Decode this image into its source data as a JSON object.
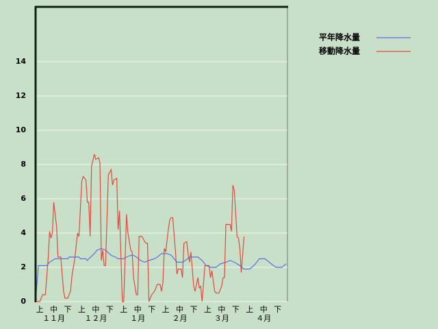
{
  "chart_data": {
    "type": "line",
    "xlim": [
      0,
      180
    ],
    "ylim": [
      0,
      17.2
    ],
    "yticks": [
      0,
      2,
      4,
      6,
      8,
      10,
      12,
      14
    ],
    "xticks": [
      {
        "value": 3,
        "label": "上"
      },
      {
        "value": 13,
        "label": "中"
      },
      {
        "value": 23,
        "label": "下"
      },
      {
        "value": 33,
        "label": "上"
      },
      {
        "value": 43,
        "label": "中"
      },
      {
        "value": 53,
        "label": "下"
      },
      {
        "value": 63,
        "label": "上"
      },
      {
        "value": 73,
        "label": "中"
      },
      {
        "value": 83,
        "label": "下"
      },
      {
        "value": 93,
        "label": "上"
      },
      {
        "value": 103,
        "label": "中"
      },
      {
        "value": 113,
        "label": "下"
      },
      {
        "value": 123,
        "label": "上"
      },
      {
        "value": 133,
        "label": "中"
      },
      {
        "value": 143,
        "label": "下"
      },
      {
        "value": 153,
        "label": "上"
      },
      {
        "value": 163,
        "label": "中"
      },
      {
        "value": 173,
        "label": "下"
      }
    ],
    "month_ticks": [
      {
        "value": 13,
        "label": "１１月"
      },
      {
        "value": 43,
        "label": "１２月"
      },
      {
        "value": 73,
        "label": "１月"
      },
      {
        "value": 103,
        "label": "２月"
      },
      {
        "value": 133,
        "label": "３月"
      },
      {
        "value": 163,
        "label": "４月"
      }
    ],
    "grid": true,
    "series": [
      {
        "name": "平年降水量",
        "color": "#5a6ee6",
        "x": [
          0,
          2,
          8,
          10,
          14,
          23,
          24,
          31,
          32,
          36,
          37,
          38,
          42,
          44,
          47,
          50,
          54,
          57,
          59,
          63,
          65,
          68,
          70,
          72,
          75,
          78,
          81,
          85,
          87,
          90,
          94,
          97,
          99,
          101,
          105,
          107,
          110,
          116,
          119,
          122,
          125,
          129,
          132,
          136,
          139,
          142,
          146,
          149,
          153,
          156,
          158,
          160,
          164,
          167,
          170,
          172,
          176,
          179
        ],
        "values": [
          0,
          2.1,
          2.1,
          2.3,
          2.5,
          2.5,
          2.6,
          2.6,
          2.5,
          2.5,
          2.4,
          2.5,
          2.8,
          3.0,
          3.1,
          3.0,
          2.7,
          2.6,
          2.5,
          2.5,
          2.6,
          2.7,
          2.7,
          2.6,
          2.4,
          2.3,
          2.4,
          2.5,
          2.6,
          2.8,
          2.8,
          2.7,
          2.5,
          2.3,
          2.3,
          2.4,
          2.6,
          2.6,
          2.4,
          2.1,
          2.0,
          2.0,
          2.2,
          2.3,
          2.4,
          2.3,
          2.1,
          1.9,
          1.9,
          2.1,
          2.3,
          2.5,
          2.5,
          2.3,
          2.1,
          2.0,
          2.0,
          2.2
        ]
      },
      {
        "name": "移動降水量",
        "color": "#e04a3c",
        "x": [
          1,
          3,
          5,
          7,
          9,
          10,
          11,
          12,
          13,
          15,
          16,
          18,
          20,
          21,
          23,
          25,
          26,
          28,
          30,
          31,
          33,
          34,
          36,
          37,
          38,
          39,
          40,
          42,
          43,
          45,
          46,
          47,
          48,
          49,
          50,
          52,
          54,
          55,
          56,
          58,
          59,
          60,
          62,
          63,
          65,
          66,
          68,
          69,
          70,
          72,
          73,
          74,
          76,
          78,
          79,
          80,
          81,
          83,
          85,
          87,
          89,
          90,
          91,
          92,
          93,
          95,
          96,
          97,
          98,
          100,
          101,
          102,
          104,
          105,
          106,
          108,
          109,
          110,
          111,
          113,
          114,
          116,
          117,
          118,
          119,
          121,
          122,
          124,
          125,
          126,
          128,
          129,
          131,
          133,
          134,
          135,
          136,
          138,
          139,
          140,
          141,
          142,
          144,
          145,
          146,
          147,
          149
        ],
        "values": [
          0,
          0,
          0.4,
          0.4,
          2.5,
          4.1,
          3.7,
          4,
          5.8,
          4.4,
          2.6,
          2.6,
          0.6,
          0.2,
          0.2,
          0.6,
          1.5,
          2.5,
          4,
          3.8,
          7,
          7.3,
          7.1,
          5.8,
          5.8,
          3.8,
          7.9,
          8.6,
          8.3,
          8.4,
          8.1,
          2.4,
          3,
          2.1,
          2.1,
          7.4,
          7.7,
          6.8,
          7.1,
          7.2,
          4.2,
          5.3,
          0,
          0,
          5.1,
          4,
          3,
          2.9,
          1.4,
          0.4,
          0.4,
          3.8,
          3.8,
          3.5,
          3.4,
          3.4,
          0,
          0.4,
          0.6,
          1,
          1,
          0.6,
          1.1,
          3.1,
          2.9,
          4.3,
          4.8,
          4.9,
          4.9,
          2.9,
          1.6,
          1.9,
          1.9,
          1.4,
          3.4,
          3.5,
          2.8,
          2.3,
          2.9,
          0.9,
          0.6,
          1.4,
          0.8,
          0.9,
          0,
          2.1,
          2.1,
          2.1,
          1.4,
          1.8,
          0.6,
          0.5,
          0.5,
          0.9,
          1.4,
          1.4,
          4.5,
          4.5,
          4.5,
          4.1,
          6.8,
          6.5,
          3.8,
          3.7,
          3.1,
          1.7,
          3.8
        ]
      }
    ]
  }
}
